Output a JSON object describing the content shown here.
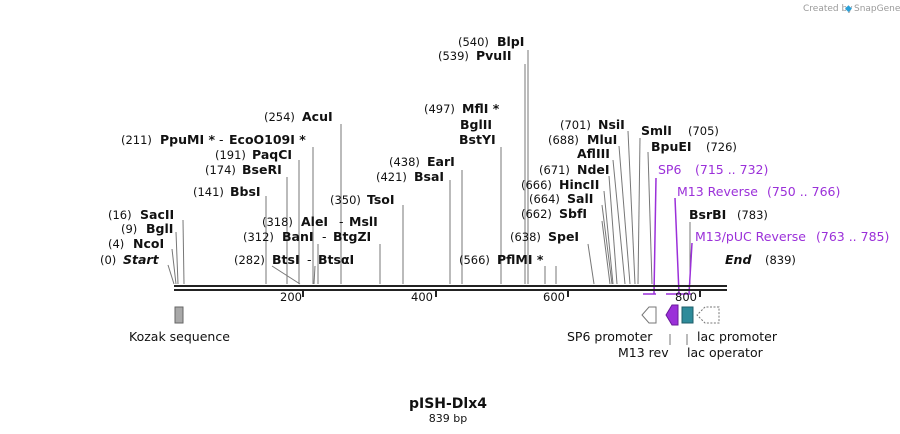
{
  "credit": {
    "prefix": "Created by",
    "brand": "SnapGene"
  },
  "plasmid": {
    "name": "pISH-Dlx4",
    "length_label": "839 bp"
  },
  "ruler": {
    "ticks": [
      "200",
      "400",
      "600",
      "800"
    ]
  },
  "ends": {
    "start_pos": "(0)",
    "start": "Start",
    "end": "End",
    "end_pos": "(839)"
  },
  "sites": {
    "ncoi": {
      "pos": "(4)",
      "name": "NcoI"
    },
    "bgli": {
      "pos": "(9)",
      "name": "BglI"
    },
    "sacii": {
      "pos": "(16)",
      "name": "SacII"
    },
    "bbsi": {
      "pos": "(141)",
      "name": "BbsI"
    },
    "bseri": {
      "pos": "(174)",
      "name": "BseRI"
    },
    "paqci": {
      "pos": "(191)",
      "name": "PaqCI"
    },
    "ppumi": {
      "pos": "(211)",
      "name": "PpuMI *"
    },
    "ecoo109i": {
      "name": "EcoO109I *"
    },
    "acui": {
      "pos": "(254)",
      "name": "AcuI"
    },
    "btsi": {
      "pos": "(282)",
      "name": "BtsI"
    },
    "btsai": {
      "name": "BtsαI"
    },
    "bani": {
      "pos": "(312)",
      "name": "BanI"
    },
    "btgzi": {
      "name": "BtgZI"
    },
    "alei": {
      "pos": "(318)",
      "name": "AleI"
    },
    "msli": {
      "name": "MslI"
    },
    "tsoi": {
      "pos": "(350)",
      "name": "TsoI"
    },
    "bsai": {
      "pos": "(421)",
      "name": "BsaI"
    },
    "eari": {
      "pos": "(438)",
      "name": "EarI"
    },
    "mfli": {
      "pos": "(497)",
      "name": "MflI *"
    },
    "bglii": {
      "name": "BglII"
    },
    "bstyi": {
      "name": "BstYI"
    },
    "pvuii": {
      "pos": "(539)",
      "name": "PvuII"
    },
    "blpi": {
      "pos": "(540)",
      "name": "BlpI"
    },
    "pflmi": {
      "pos": "(566)",
      "name": "PflMI *"
    },
    "spei": {
      "pos": "(638)",
      "name": "SpeI"
    },
    "sbfi": {
      "pos": "(662)",
      "name": "SbfI"
    },
    "sali": {
      "pos": "(664)",
      "name": "SalI"
    },
    "hincii": {
      "pos": "(666)",
      "name": "HincII"
    },
    "ndei": {
      "pos": "(671)",
      "name": "NdeI"
    },
    "afliii": {
      "name": "AflIII"
    },
    "mlui": {
      "pos": "(688)",
      "name": "MluI"
    },
    "nsii": {
      "pos": "(701)",
      "name": "NsiI"
    },
    "smli": {
      "name": "SmlI",
      "pos": "(705)"
    },
    "bpuei": {
      "name": "BpuEI",
      "pos": "(726)"
    },
    "bsrbi": {
      "name": "BsrBI",
      "pos": "(783)"
    }
  },
  "primers": {
    "sp6": {
      "name": "SP6",
      "range": "(715 .. 732)"
    },
    "m13rev": {
      "name": "M13 Reverse",
      "range": "(750 .. 766)"
    },
    "m13puc": {
      "name": "M13/pUC Reverse",
      "range": "(763 .. 785)"
    }
  },
  "features": {
    "kozak": "Kozak sequence",
    "sp6_promoter": "SP6 promoter",
    "m13_rev": "M13 rev",
    "lac_promoter": "lac promoter",
    "lac_operator": "lac operator"
  },
  "colors": {
    "primer": "#9b30d9",
    "kozak": "#a8a8a8",
    "lac_operator": "#2e8b9a",
    "m13_feature": "#9b30d9"
  }
}
